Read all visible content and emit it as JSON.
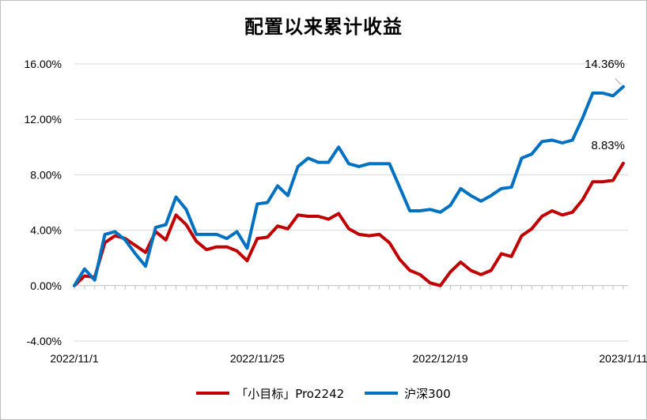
{
  "chart_data": {
    "type": "line",
    "title": "配置以来累计收益",
    "xlabel": "",
    "ylabel": "",
    "ylim": [
      -4,
      16
    ],
    "y_ticks": [
      "-4.00%",
      "0.00%",
      "4.00%",
      "8.00%",
      "12.00%",
      "16.00%"
    ],
    "y_tick_values": [
      -4,
      0,
      4,
      8,
      12,
      16
    ],
    "x_tick_labels": [
      "2022/11/1",
      "2022/11/25",
      "2022/12/19",
      "2023/1/11"
    ],
    "x_tick_indices": [
      0,
      18,
      36,
      54
    ],
    "grid": "horizontal",
    "legend_position": "bottom",
    "series": [
      {
        "name": "「小目标」Pro2242",
        "color": "#c00000",
        "values": [
          0.0,
          0.7,
          0.6,
          3.1,
          3.6,
          3.4,
          2.9,
          2.4,
          3.9,
          3.3,
          5.1,
          4.4,
          3.2,
          2.6,
          2.8,
          2.8,
          2.5,
          1.8,
          3.4,
          3.5,
          4.3,
          4.1,
          5.1,
          5.0,
          5.0,
          4.8,
          5.2,
          4.1,
          3.7,
          3.6,
          3.7,
          3.1,
          1.9,
          1.1,
          0.8,
          0.2,
          0.0,
          1.0,
          1.7,
          1.1,
          0.8,
          1.1,
          2.3,
          2.1,
          3.6,
          4.1,
          5.0,
          5.4,
          5.1,
          5.3,
          6.2,
          7.5,
          7.5,
          7.6,
          8.83
        ],
        "end_label": "8.83%"
      },
      {
        "name": "沪深300",
        "color": "#0070c0",
        "values": [
          0.0,
          1.2,
          0.4,
          3.7,
          3.9,
          3.3,
          2.3,
          1.4,
          4.2,
          4.4,
          6.4,
          5.5,
          3.7,
          3.7,
          3.7,
          3.4,
          3.9,
          2.7,
          5.9,
          6.0,
          7.2,
          6.5,
          8.6,
          9.2,
          8.9,
          8.9,
          10.0,
          8.8,
          8.6,
          8.8,
          8.8,
          8.8,
          7.1,
          5.4,
          5.4,
          5.5,
          5.3,
          5.8,
          7.0,
          6.5,
          6.1,
          6.5,
          7.0,
          7.1,
          9.2,
          9.5,
          10.4,
          10.5,
          10.3,
          10.5,
          12.1,
          13.9,
          13.9,
          13.7,
          14.36
        ],
        "end_label": "14.36%"
      }
    ]
  }
}
